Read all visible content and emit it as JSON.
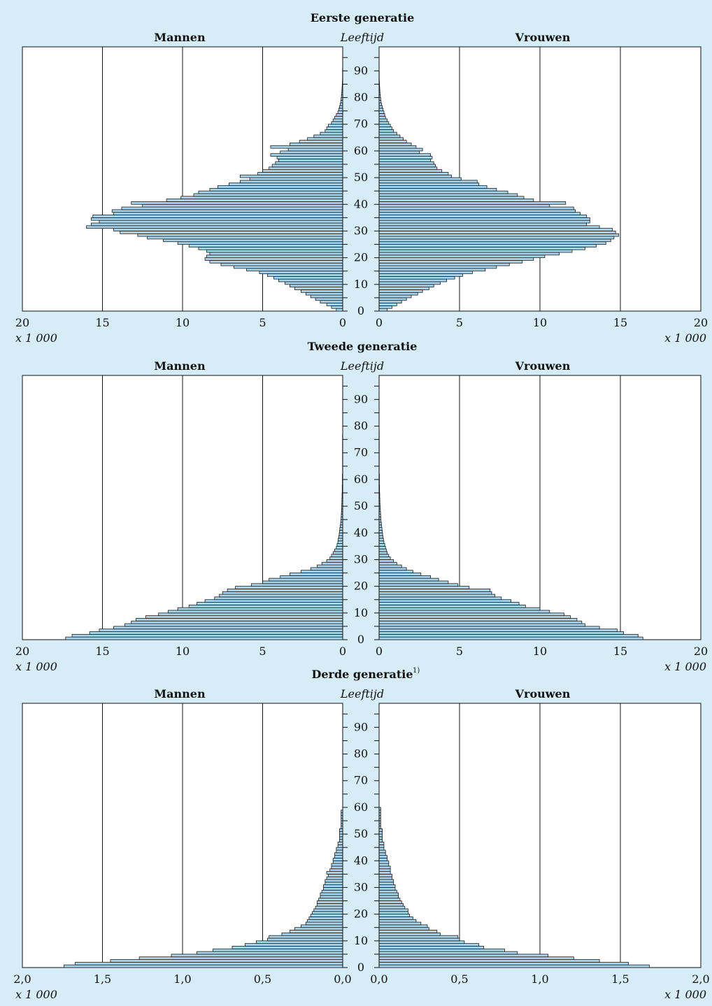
{
  "chart_data": [
    {
      "type": "population-pyramid",
      "title": "Eerste generatie",
      "footnote_marker": "",
      "left_label": "Mannen",
      "right_label": "Vrouwen",
      "center_label": "Leeftijd",
      "unit_label": "x 1 000",
      "xlim": [
        0,
        20
      ],
      "x_ticks": [
        "0",
        "5",
        "10",
        "15",
        "20"
      ],
      "age_ticks": [
        "0",
        "10",
        "20",
        "30",
        "40",
        "50",
        "60",
        "70",
        "80",
        "90"
      ],
      "ages_step": 1,
      "mannen": [
        0.4,
        0.7,
        1.0,
        1.4,
        1.7,
        2.0,
        2.3,
        2.6,
        3.0,
        3.3,
        3.6,
        4.0,
        4.3,
        4.7,
        5.2,
        6.0,
        6.8,
        7.6,
        8.3,
        8.6,
        8.5,
        8.3,
        8.5,
        9.0,
        9.6,
        10.3,
        11.2,
        12.2,
        12.8,
        13.9,
        14.3,
        16.0,
        15.7,
        15.2,
        15.7,
        15.6,
        14.3,
        14.4,
        13.8,
        12.5,
        13.2,
        11.0,
        10.1,
        9.3,
        9.0,
        8.3,
        7.8,
        7.1,
        6.4,
        5.8,
        6.4,
        5.3,
        5.0,
        4.6,
        4.4,
        4.2,
        4.0,
        4.1,
        4.5,
        3.9,
        3.4,
        4.5,
        3.3,
        2.7,
        2.2,
        1.8,
        1.4,
        1.1,
        1.0,
        0.9,
        0.7,
        0.6,
        0.5,
        0.4,
        0.3,
        0.25,
        0.2,
        0.15,
        0.12,
        0.1,
        0.08,
        0.06,
        0.05,
        0.04,
        0.03,
        0.02,
        0.015,
        0.01,
        0.01,
        0.01,
        0.01,
        0.0,
        0.0,
        0.0,
        0.0,
        0.0
      ],
      "vrouwen": [
        0.5,
        0.8,
        1.1,
        1.4,
        1.7,
        2.0,
        2.4,
        2.7,
        3.1,
        3.4,
        3.8,
        4.2,
        4.7,
        5.2,
        5.8,
        6.6,
        7.3,
        8.1,
        8.9,
        9.6,
        10.3,
        11.2,
        12.0,
        12.8,
        13.5,
        14.1,
        14.4,
        14.6,
        14.9,
        14.7,
        14.5,
        13.7,
        12.9,
        13.1,
        13.1,
        12.9,
        12.5,
        12.2,
        12.1,
        10.6,
        11.6,
        9.6,
        9.0,
        8.6,
        8.0,
        7.3,
        6.7,
        6.2,
        6.1,
        5.1,
        4.5,
        4.3,
        3.9,
        3.6,
        3.5,
        3.4,
        3.2,
        3.3,
        3.2,
        2.5,
        2.7,
        2.3,
        2.0,
        1.7,
        1.5,
        1.3,
        1.1,
        0.9,
        0.8,
        0.7,
        0.6,
        0.5,
        0.4,
        0.35,
        0.3,
        0.25,
        0.2,
        0.15,
        0.12,
        0.1,
        0.08,
        0.06,
        0.05,
        0.04,
        0.03,
        0.02,
        0.015,
        0.01,
        0.01,
        0.01,
        0.0,
        0.0,
        0.0,
        0.0,
        0.0,
        0.0
      ]
    },
    {
      "type": "population-pyramid",
      "title": "Tweede generatie",
      "footnote_marker": "",
      "left_label": "Mannen",
      "right_label": "Vrouwen",
      "center_label": "Leeftijd",
      "unit_label": "x 1 000",
      "xlim": [
        0,
        20
      ],
      "x_ticks": [
        "0",
        "5",
        "10",
        "15",
        "20"
      ],
      "age_ticks": [
        "0",
        "10",
        "20",
        "30",
        "40",
        "50",
        "60",
        "70",
        "80",
        "90"
      ],
      "ages_step": 1,
      "mannen": [
        17.3,
        16.9,
        15.8,
        15.2,
        14.3,
        13.6,
        13.2,
        12.9,
        12.3,
        11.5,
        10.9,
        10.3,
        9.6,
        9.1,
        8.6,
        8.0,
        7.7,
        7.5,
        7.2,
        6.7,
        5.7,
        5.0,
        4.6,
        3.9,
        3.3,
        2.6,
        2.0,
        1.6,
        1.3,
        1.0,
        0.8,
        0.7,
        0.6,
        0.5,
        0.4,
        0.35,
        0.3,
        0.28,
        0.25,
        0.22,
        0.2,
        0.18,
        0.15,
        0.13,
        0.12,
        0.1,
        0.09,
        0.08,
        0.07,
        0.06,
        0.06,
        0.05,
        0.05,
        0.04,
        0.04,
        0.03,
        0.03,
        0.03,
        0.02,
        0.02,
        0.02,
        0.02,
        0.01,
        0.01,
        0.01,
        0.01,
        0.01,
        0.01,
        0.01,
        0.01,
        0.01,
        0.01,
        0.01,
        0.01,
        0.01,
        0.01,
        0.01,
        0.0,
        0.0,
        0.0,
        0.0,
        0.0,
        0.0,
        0.0,
        0.0,
        0.0,
        0.0,
        0.0,
        0.0,
        0.0,
        0.0,
        0.0,
        0.0,
        0.0,
        0.0,
        0.0
      ],
      "vrouwen": [
        16.4,
        16.1,
        15.2,
        14.8,
        13.7,
        12.8,
        12.6,
        12.3,
        11.9,
        11.5,
        10.6,
        10.0,
        9.1,
        8.7,
        8.2,
        7.6,
        7.2,
        7.0,
        6.9,
        5.6,
        4.9,
        4.3,
        3.7,
        3.2,
        2.6,
        2.1,
        1.7,
        1.4,
        1.1,
        0.9,
        0.7,
        0.6,
        0.5,
        0.45,
        0.4,
        0.35,
        0.3,
        0.27,
        0.24,
        0.22,
        0.2,
        0.18,
        0.16,
        0.14,
        0.12,
        0.11,
        0.1,
        0.09,
        0.08,
        0.07,
        0.06,
        0.05,
        0.05,
        0.04,
        0.04,
        0.03,
        0.03,
        0.03,
        0.02,
        0.02,
        0.02,
        0.02,
        0.01,
        0.01,
        0.01,
        0.01,
        0.01,
        0.01,
        0.01,
        0.01,
        0.01,
        0.01,
        0.01,
        0.01,
        0.01,
        0.01,
        0.01,
        0.01,
        0.0,
        0.0,
        0.0,
        0.0,
        0.0,
        0.0,
        0.0,
        0.0,
        0.0,
        0.0,
        0.0,
        0.0,
        0.0,
        0.0,
        0.0,
        0.0,
        0.0,
        0.0
      ]
    },
    {
      "type": "population-pyramid",
      "title": "Derde generatie",
      "footnote_marker": "1)",
      "left_label": "Mannen",
      "right_label": "Vrouwen",
      "center_label": "Leeftijd",
      "unit_label": "x 1 000",
      "xlim": [
        0,
        2.0
      ],
      "x_ticks": [
        "0,0",
        "0,5",
        "1,0",
        "1,5",
        "2,0"
      ],
      "age_ticks": [
        "0",
        "10",
        "20",
        "30",
        "40",
        "50",
        "60",
        "70",
        "80",
        "90"
      ],
      "ages_step": 1,
      "mannen": [
        1.74,
        1.67,
        1.45,
        1.27,
        1.07,
        0.91,
        0.81,
        0.69,
        0.61,
        0.54,
        0.47,
        0.46,
        0.38,
        0.33,
        0.3,
        0.26,
        0.23,
        0.22,
        0.21,
        0.2,
        0.19,
        0.18,
        0.17,
        0.16,
        0.16,
        0.15,
        0.14,
        0.14,
        0.13,
        0.12,
        0.12,
        0.11,
        0.11,
        0.1,
        0.09,
        0.1,
        0.08,
        0.07,
        0.07,
        0.06,
        0.06,
        0.05,
        0.05,
        0.04,
        0.04,
        0.03,
        0.03,
        0.02,
        0.02,
        0.02,
        0.02,
        0.02,
        0.01,
        0.01,
        0.01,
        0.01,
        0.01,
        0.01,
        0.01,
        0.0,
        0.0,
        0.0,
        0.0,
        0.0,
        0.0,
        0.0,
        0.0,
        0.0,
        0.0,
        0.0,
        0.0,
        0.0,
        0.0,
        0.0,
        0.0,
        0.0,
        0.0,
        0.0,
        0.0,
        0.0,
        0.0,
        0.0,
        0.0,
        0.0,
        0.0,
        0.0,
        0.0,
        0.0,
        0.0,
        0.0,
        0.0,
        0.0,
        0.0,
        0.0,
        0.0,
        0.0
      ],
      "vrouwen": [
        1.68,
        1.55,
        1.37,
        1.21,
        1.05,
        0.86,
        0.78,
        0.65,
        0.62,
        0.53,
        0.5,
        0.49,
        0.38,
        0.36,
        0.31,
        0.3,
        0.26,
        0.23,
        0.21,
        0.19,
        0.18,
        0.18,
        0.16,
        0.15,
        0.14,
        0.13,
        0.12,
        0.12,
        0.11,
        0.1,
        0.1,
        0.09,
        0.09,
        0.08,
        0.08,
        0.07,
        0.07,
        0.07,
        0.06,
        0.06,
        0.05,
        0.05,
        0.04,
        0.04,
        0.03,
        0.03,
        0.03,
        0.02,
        0.02,
        0.02,
        0.02,
        0.02,
        0.01,
        0.01,
        0.01,
        0.01,
        0.01,
        0.01,
        0.01,
        0.01,
        0.0,
        0.0,
        0.0,
        0.0,
        0.0,
        0.0,
        0.0,
        0.0,
        0.0,
        0.0,
        0.0,
        0.0,
        0.0,
        0.0,
        0.0,
        0.0,
        0.0,
        0.0,
        0.0,
        0.0,
        0.0,
        0.0,
        0.0,
        0.0,
        0.0,
        0.0,
        0.0,
        0.0,
        0.0,
        0.0,
        0.0,
        0.0,
        0.0,
        0.0,
        0.0,
        0.0
      ]
    }
  ],
  "colors": {
    "background": "#d6ecf7",
    "bar_fill": "#a8d4ec",
    "bar_stroke": "#1a1a1a",
    "plot_fill": "#ffffff",
    "axis": "#111111"
  }
}
